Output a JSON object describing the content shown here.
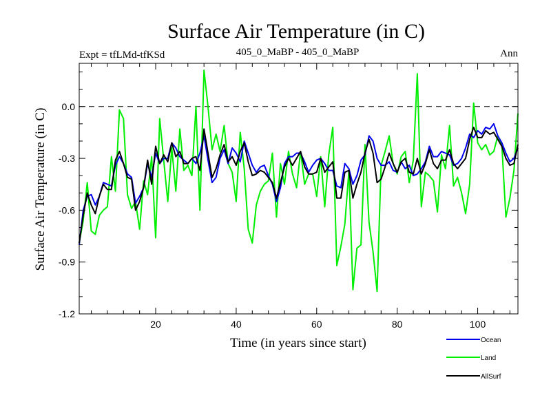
{
  "chart_data": {
    "type": "line",
    "title": "Surface Air Temperature (in C)",
    "subtitle_left": "Expt = tfLMd-tfKSd",
    "subtitle_center": "405_0_MaBP - 405_0_MaBP",
    "subtitle_right": "Ann",
    "xlabel": "Time (in years since start)",
    "ylabel": "Surface Air Temperature (in C)",
    "xlim": [
      1,
      110
    ],
    "ylim": [
      -1.2,
      0.25
    ],
    "xticks": [
      20,
      40,
      60,
      80,
      100
    ],
    "xtick_labels": [
      "20",
      "40",
      "60",
      "80",
      "100"
    ],
    "yticks": [
      -1.2,
      -0.9,
      -0.6,
      -0.3,
      0.0
    ],
    "ytick_labels": [
      "-1.2",
      "-0.9",
      "-0.6",
      "-0.3",
      "0.0"
    ],
    "reference_line": 0.0,
    "legend_position": "bottom-right",
    "x": [
      1,
      2,
      3,
      4,
      5,
      6,
      7,
      8,
      9,
      10,
      11,
      12,
      13,
      14,
      15,
      16,
      17,
      18,
      19,
      20,
      21,
      22,
      23,
      24,
      25,
      26,
      27,
      28,
      29,
      30,
      31,
      32,
      33,
      34,
      35,
      36,
      37,
      38,
      39,
      40,
      41,
      42,
      43,
      44,
      45,
      46,
      47,
      48,
      49,
      50,
      51,
      52,
      53,
      54,
      55,
      56,
      57,
      58,
      59,
      60,
      61,
      62,
      63,
      64,
      65,
      66,
      67,
      68,
      69,
      70,
      71,
      72,
      73,
      74,
      75,
      76,
      77,
      78,
      79,
      80,
      81,
      82,
      83,
      84,
      85,
      86,
      87,
      88,
      89,
      90,
      91,
      92,
      93,
      94,
      95,
      96,
      97,
      98,
      99,
      100,
      101,
      102,
      103,
      104,
      105,
      106,
      107,
      108,
      109,
      110
    ],
    "series": [
      {
        "name": "Ocean",
        "color": "#0000ee",
        "values": [
          -0.8,
          -0.6,
          -0.52,
          -0.51,
          -0.57,
          -0.52,
          -0.44,
          -0.45,
          -0.46,
          -0.34,
          -0.29,
          -0.33,
          -0.39,
          -0.41,
          -0.56,
          -0.52,
          -0.47,
          -0.33,
          -0.41,
          -0.27,
          -0.33,
          -0.3,
          -0.3,
          -0.21,
          -0.24,
          -0.29,
          -0.31,
          -0.33,
          -0.3,
          -0.33,
          -0.27,
          -0.17,
          -0.31,
          -0.44,
          -0.41,
          -0.3,
          -0.25,
          -0.33,
          -0.24,
          -0.27,
          -0.32,
          -0.2,
          -0.27,
          -0.34,
          -0.38,
          -0.35,
          -0.34,
          -0.4,
          -0.45,
          -0.55,
          -0.47,
          -0.33,
          -0.29,
          -0.29,
          -0.27,
          -0.27,
          -0.32,
          -0.38,
          -0.34,
          -0.31,
          -0.3,
          -0.33,
          -0.37,
          -0.37,
          -0.46,
          -0.47,
          -0.33,
          -0.36,
          -0.45,
          -0.4,
          -0.31,
          -0.28,
          -0.17,
          -0.2,
          -0.3,
          -0.34,
          -0.34,
          -0.32,
          -0.37,
          -0.38,
          -0.32,
          -0.36,
          -0.34,
          -0.4,
          -0.39,
          -0.36,
          -0.32,
          -0.23,
          -0.29,
          -0.29,
          -0.26,
          -0.27,
          -0.28,
          -0.34,
          -0.33,
          -0.3,
          -0.24,
          -0.16,
          -0.18,
          -0.14,
          -0.16,
          -0.12,
          -0.13,
          -0.1,
          -0.17,
          -0.21,
          -0.27,
          -0.32,
          -0.3,
          -0.24
        ]
      },
      {
        "name": "Land",
        "color": "#00ee00",
        "values": [
          -0.79,
          -0.66,
          -0.44,
          -0.72,
          -0.74,
          -0.63,
          -0.6,
          -0.58,
          -0.29,
          -0.49,
          -0.02,
          -0.07,
          -0.51,
          -0.59,
          -0.55,
          -0.71,
          -0.43,
          -0.51,
          -0.29,
          -0.76,
          -0.07,
          -0.31,
          -0.55,
          -0.24,
          -0.49,
          -0.13,
          -0.37,
          -0.34,
          -0.4,
          0.0,
          -0.6,
          0.21,
          0.0,
          -0.25,
          -0.16,
          -0.26,
          -0.11,
          -0.33,
          -0.38,
          -0.55,
          -0.15,
          -0.36,
          -0.71,
          -0.79,
          -0.57,
          -0.49,
          -0.45,
          -0.43,
          -0.27,
          -0.64,
          -0.33,
          -0.45,
          -0.26,
          -0.39,
          -0.47,
          -0.26,
          -0.45,
          -0.39,
          -0.39,
          -0.52,
          -0.29,
          -0.58,
          -0.28,
          -0.12,
          -0.92,
          -0.81,
          -0.68,
          -0.37,
          -1.06,
          -0.82,
          -0.8,
          -0.22,
          -0.67,
          -0.84,
          -1.07,
          -0.34,
          -0.26,
          -0.17,
          -0.33,
          -0.39,
          -0.29,
          -0.26,
          -0.44,
          -0.31,
          0.19,
          -0.58,
          -0.38,
          -0.4,
          -0.43,
          -0.61,
          -0.28,
          -0.36,
          -0.11,
          -0.46,
          -0.41,
          -0.5,
          -0.62,
          -0.45,
          0.02,
          -0.21,
          -0.25,
          -0.22,
          -0.28,
          -0.26,
          -0.17,
          -0.22,
          -0.64,
          -0.53,
          -0.37,
          -0.04
        ]
      },
      {
        "name": "AllSurf",
        "color": "#000000",
        "values": [
          -0.79,
          -0.63,
          -0.5,
          -0.57,
          -0.62,
          -0.52,
          -0.45,
          -0.48,
          -0.48,
          -0.31,
          -0.26,
          -0.33,
          -0.41,
          -0.42,
          -0.6,
          -0.55,
          -0.47,
          -0.31,
          -0.45,
          -0.23,
          -0.33,
          -0.28,
          -0.32,
          -0.21,
          -0.29,
          -0.26,
          -0.33,
          -0.33,
          -0.3,
          -0.29,
          -0.37,
          -0.13,
          -0.27,
          -0.41,
          -0.36,
          -0.28,
          -0.22,
          -0.32,
          -0.29,
          -0.34,
          -0.26,
          -0.21,
          -0.32,
          -0.4,
          -0.39,
          -0.37,
          -0.38,
          -0.41,
          -0.44,
          -0.53,
          -0.44,
          -0.35,
          -0.3,
          -0.34,
          -0.3,
          -0.26,
          -0.35,
          -0.39,
          -0.39,
          -0.38,
          -0.3,
          -0.38,
          -0.35,
          -0.32,
          -0.53,
          -0.53,
          -0.38,
          -0.37,
          -0.53,
          -0.45,
          -0.38,
          -0.27,
          -0.19,
          -0.27,
          -0.44,
          -0.42,
          -0.35,
          -0.27,
          -0.33,
          -0.38,
          -0.32,
          -0.3,
          -0.38,
          -0.39,
          -0.3,
          -0.39,
          -0.33,
          -0.25,
          -0.33,
          -0.36,
          -0.31,
          -0.31,
          -0.25,
          -0.33,
          -0.36,
          -0.33,
          -0.3,
          -0.19,
          -0.12,
          -0.18,
          -0.18,
          -0.14,
          -0.16,
          -0.15,
          -0.19,
          -0.23,
          -0.3,
          -0.34,
          -0.33,
          -0.22
        ]
      }
    ]
  }
}
